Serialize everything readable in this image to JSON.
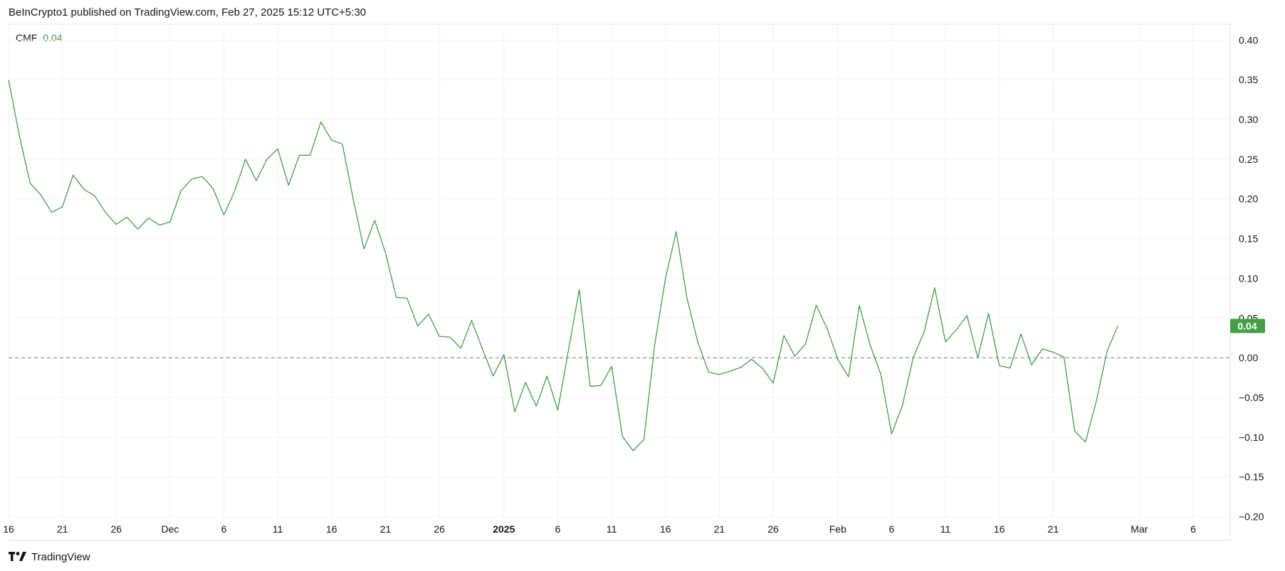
{
  "header": {
    "text": "BeInCrypto1 published on TradingView.com, Feb 27, 2025 15:12 UTC+5:30"
  },
  "footer": {
    "brand": "TradingView",
    "logo_icon": "tradingview-logo-icon"
  },
  "colors": {
    "line": "#43a047",
    "badge": "#43a047",
    "grid": "#f0f3fa",
    "zero_line": "#787b86",
    "text": "#131722"
  },
  "chart_data": {
    "type": "line",
    "indicator": {
      "name": "CMF",
      "value_label": "0.04"
    },
    "last_value_badge": "0.04",
    "zero_line": true,
    "grid": true,
    "ylim": [
      -0.23,
      0.42
    ],
    "yticks": [
      0.4,
      0.35,
      0.3,
      0.25,
      0.2,
      0.15,
      0.1,
      0.05,
      0.0,
      -0.05,
      -0.1,
      -0.15,
      -0.2
    ],
    "ytick_labels": [
      "0.40",
      "0.35",
      "0.30",
      "0.25",
      "0.20",
      "0.15",
      "0.10",
      "0.05",
      "0.00",
      "−0.05",
      "−0.10",
      "−0.15",
      "−0.20"
    ],
    "xticks": [
      {
        "date": "2024-11-16",
        "label": "16",
        "bold": false
      },
      {
        "date": "2024-11-21",
        "label": "21",
        "bold": false
      },
      {
        "date": "2024-11-26",
        "label": "26",
        "bold": false
      },
      {
        "date": "2024-12-01",
        "label": "Dec",
        "bold": false
      },
      {
        "date": "2024-12-06",
        "label": "6",
        "bold": false
      },
      {
        "date": "2024-12-11",
        "label": "11",
        "bold": false
      },
      {
        "date": "2024-12-16",
        "label": "16",
        "bold": false
      },
      {
        "date": "2024-12-21",
        "label": "21",
        "bold": false
      },
      {
        "date": "2024-12-26",
        "label": "26",
        "bold": false
      },
      {
        "date": "2025-01-01",
        "label": "2025",
        "bold": true
      },
      {
        "date": "2025-01-06",
        "label": "6",
        "bold": false
      },
      {
        "date": "2025-01-11",
        "label": "11",
        "bold": false
      },
      {
        "date": "2025-01-16",
        "label": "16",
        "bold": false
      },
      {
        "date": "2025-01-21",
        "label": "21",
        "bold": false
      },
      {
        "date": "2025-01-26",
        "label": "26",
        "bold": false
      },
      {
        "date": "2025-02-01",
        "label": "Feb",
        "bold": false
      },
      {
        "date": "2025-02-06",
        "label": "6",
        "bold": false
      },
      {
        "date": "2025-02-11",
        "label": "11",
        "bold": false
      },
      {
        "date": "2025-02-16",
        "label": "16",
        "bold": false
      },
      {
        "date": "2025-02-21",
        "label": "21",
        "bold": false
      },
      {
        "date": "2025-03-01",
        "label": "Mar",
        "bold": false
      },
      {
        "date": "2025-03-06",
        "label": "6",
        "bold": false
      }
    ],
    "series": [
      {
        "x": [
          "2024-11-16",
          "2024-11-17",
          "2024-11-18",
          "2024-11-19",
          "2024-11-20",
          "2024-11-21",
          "2024-11-22",
          "2024-11-23",
          "2024-11-24",
          "2024-11-25",
          "2024-11-26",
          "2024-11-27",
          "2024-11-28",
          "2024-11-29",
          "2024-11-30",
          "2024-12-01",
          "2024-12-02",
          "2024-12-03",
          "2024-12-04",
          "2024-12-05",
          "2024-12-06",
          "2024-12-07",
          "2024-12-08",
          "2024-12-09",
          "2024-12-10",
          "2024-12-11",
          "2024-12-12",
          "2024-12-13",
          "2024-12-14",
          "2024-12-15",
          "2024-12-16",
          "2024-12-17",
          "2024-12-18",
          "2024-12-19",
          "2024-12-20",
          "2024-12-21",
          "2024-12-22",
          "2024-12-23",
          "2024-12-24",
          "2024-12-25",
          "2024-12-26",
          "2024-12-27",
          "2024-12-28",
          "2024-12-29",
          "2024-12-30",
          "2024-12-31",
          "2025-01-01",
          "2025-01-02",
          "2025-01-03",
          "2025-01-04",
          "2025-01-05",
          "2025-01-06",
          "2025-01-07",
          "2025-01-08",
          "2025-01-09",
          "2025-01-10",
          "2025-01-11",
          "2025-01-12",
          "2025-01-13",
          "2025-01-14",
          "2025-01-15",
          "2025-01-16",
          "2025-01-17",
          "2025-01-18",
          "2025-01-19",
          "2025-01-20",
          "2025-01-21",
          "2025-01-22",
          "2025-01-23",
          "2025-01-24",
          "2025-01-25",
          "2025-01-26",
          "2025-01-27",
          "2025-01-28",
          "2025-01-29",
          "2025-01-30",
          "2025-01-31",
          "2025-02-01",
          "2025-02-02",
          "2025-02-03",
          "2025-02-04",
          "2025-02-05",
          "2025-02-06",
          "2025-02-07",
          "2025-02-08",
          "2025-02-09",
          "2025-02-10",
          "2025-02-11",
          "2025-02-12",
          "2025-02-13",
          "2025-02-14",
          "2025-02-15",
          "2025-02-16",
          "2025-02-17",
          "2025-02-18",
          "2025-02-19",
          "2025-02-20",
          "2025-02-21",
          "2025-02-22",
          "2025-02-23",
          "2025-02-24",
          "2025-02-25",
          "2025-02-26",
          "2025-02-27"
        ],
        "y": [
          0.35,
          0.28,
          0.22,
          0.205,
          0.183,
          0.19,
          0.23,
          0.212,
          0.204,
          0.183,
          0.168,
          0.177,
          0.162,
          0.176,
          0.167,
          0.171,
          0.21,
          0.225,
          0.228,
          0.213,
          0.18,
          0.21,
          0.25,
          0.223,
          0.25,
          0.263,
          0.217,
          0.255,
          0.255,
          0.297,
          0.274,
          0.269,
          0.2,
          0.137,
          0.173,
          0.132,
          0.076,
          0.075,
          0.04,
          0.055,
          0.027,
          0.026,
          0.012,
          0.047,
          0.011,
          -0.023,
          0.004,
          -0.068,
          -0.031,
          -0.061,
          -0.023,
          -0.066,
          0.01,
          0.086,
          -0.036,
          -0.035,
          -0.011,
          -0.099,
          -0.117,
          -0.103,
          0.016,
          0.1,
          0.159,
          0.075,
          0.02,
          -0.018,
          -0.021,
          -0.017,
          -0.012,
          -0.002,
          -0.013,
          -0.032,
          0.028,
          0.002,
          0.017,
          0.066,
          0.037,
          -0.002,
          -0.024,
          0.066,
          0.016,
          -0.021,
          -0.096,
          -0.06,
          0.0,
          0.032,
          0.088,
          0.02,
          0.035,
          0.053,
          0.0,
          0.056,
          -0.01,
          -0.013,
          0.03,
          -0.009,
          0.011,
          0.007,
          0.001,
          -0.092,
          -0.106,
          -0.055,
          0.008,
          0.04
        ]
      }
    ]
  }
}
